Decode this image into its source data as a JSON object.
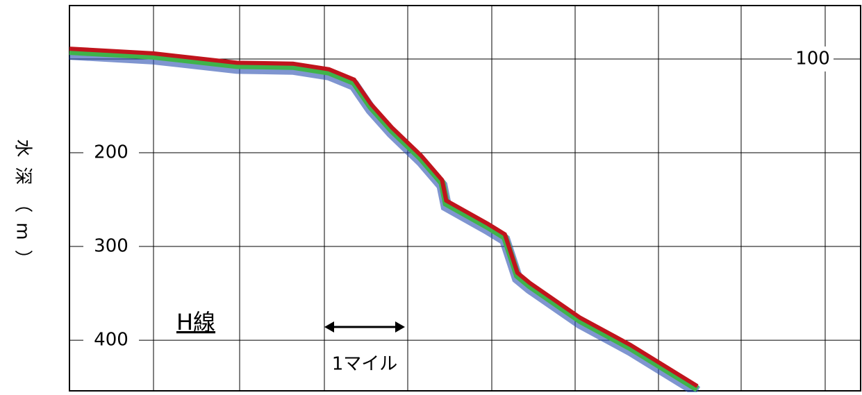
{
  "chart_data": {
    "type": "line",
    "y_label": "水深（m）",
    "annotations": [
      "H線",
      "1マイル"
    ],
    "x": [
      0,
      1.0,
      2.0,
      2.67,
      3.1,
      3.4,
      3.6,
      3.85,
      4.2,
      4.45,
      4.5,
      5.0,
      5.2,
      5.35,
      5.5,
      6.1,
      6.7,
      7.5
    ],
    "values": [
      89,
      94,
      104,
      105,
      111,
      122,
      148,
      173,
      203,
      229,
      251,
      276,
      287,
      328,
      339,
      376,
      405,
      449
    ],
    "color": "#c0141c",
    "xlim": [
      0,
      9.45
    ],
    "ylim": [
      43,
      454
    ],
    "yticks": [
      100,
      200,
      300,
      400
    ],
    "grid": true
  }
}
